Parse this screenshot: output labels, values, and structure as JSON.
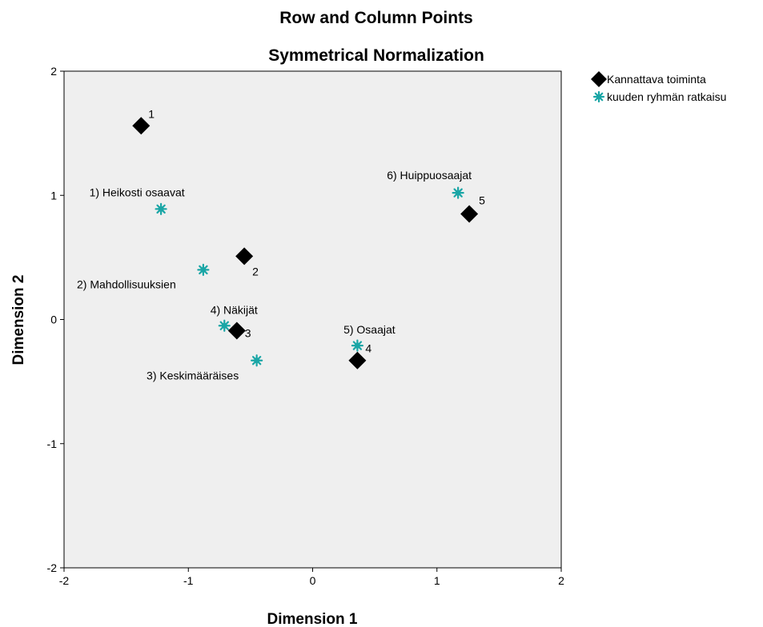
{
  "chart_data": {
    "type": "scatter",
    "title": "Row and Column Points",
    "subtitle": "Symmetrical Normalization",
    "xlabel": "Dimension 1",
    "ylabel": "Dimension 2",
    "xlim": [
      -2,
      2
    ],
    "ylim": [
      -2,
      2
    ],
    "xticks": [
      "-2",
      "-1",
      "0",
      "1",
      "2"
    ],
    "yticks": [
      "-2",
      "-1",
      "0",
      "1",
      "2"
    ],
    "grid": false,
    "legend_position": "right",
    "plot_background": "#efefef",
    "series": [
      {
        "name": "Kannattava toiminta",
        "marker": "diamond",
        "color": "#000000",
        "points": [
          {
            "label": "1",
            "x": -1.38,
            "y": 1.56
          },
          {
            "label": "2",
            "x": -0.55,
            "y": 0.51
          },
          {
            "label": "3",
            "x": -0.61,
            "y": -0.09
          },
          {
            "label": "4",
            "x": 0.36,
            "y": -0.33
          },
          {
            "label": "5",
            "x": 1.26,
            "y": 0.85
          }
        ]
      },
      {
        "name": "kuuden ryhmän ratkaisu",
        "marker": "star",
        "color": "#1aa6a6",
        "points": [
          {
            "label": "1) Heikosti osaavat",
            "x": -1.22,
            "y": 0.89
          },
          {
            "label": "2) Mahdollisuuksien",
            "x": -0.88,
            "y": 0.4
          },
          {
            "label": "3) Keskimääräises",
            "x": -0.45,
            "y": -0.33
          },
          {
            "label": "4) Näkijät",
            "x": -0.71,
            "y": -0.05
          },
          {
            "label": "5) Osaajat",
            "x": 0.36,
            "y": -0.21
          },
          {
            "label": "6) Huippuosaajat",
            "x": 1.17,
            "y": 1.02
          }
        ]
      }
    ]
  }
}
